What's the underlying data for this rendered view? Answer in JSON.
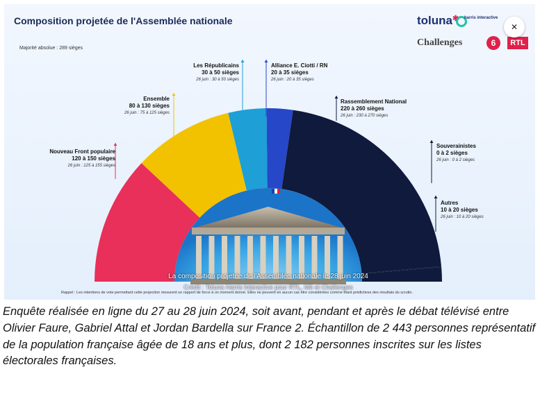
{
  "chart_data": {
    "type": "semicircle",
    "title": "Composition projetée de l'Assemblée nationale",
    "majority_note": "Majorité absolue : 289 sièges",
    "segments": [
      {
        "name": "Nouveau Front populaire",
        "range": "120 à 150 sièges",
        "previous": "26 juin : 125 à 155 sièges",
        "min": 120,
        "max": 150,
        "color": "#e8305a"
      },
      {
        "name": "Ensemble",
        "range": "80 à 130 sièges",
        "previous": "26 juin : 75 à 125 sièges",
        "min": 80,
        "max": 130,
        "color": "#f2c200"
      },
      {
        "name": "Les Républicains",
        "range": "30 à 50 sièges",
        "previous": "26 juin : 30 à 50 sièges",
        "min": 30,
        "max": 50,
        "color": "#1e9fd6"
      },
      {
        "name": "Alliance E. Ciotti / RN",
        "range": "20 à 35 sièges",
        "previous": "26 juin : 20 à 35 sièges",
        "min": 20,
        "max": 35,
        "color": "#2647c8"
      },
      {
        "name": "Rassemblement National",
        "range": "220 à 260 sièges",
        "previous": "26 juin : 230 à 270 sièges",
        "min": 220,
        "max": 260,
        "color": "#0f1a3c"
      },
      {
        "name": "Souverainistes",
        "range": "0 à 2 sièges",
        "previous": "26 juin : 0 à 2 sièges",
        "min": 0,
        "max": 2,
        "color": "#0f1a3c"
      },
      {
        "name": "Autres",
        "range": "10 à 20 sièges",
        "previous": "26 juin : 10 à 20 sièges",
        "min": 10,
        "max": 20,
        "color": "#0f1a3c"
      }
    ]
  },
  "logos": {
    "toluna": "toluna",
    "harris": "harris interactive",
    "challenges": "Challenges",
    "m6": "6",
    "rtl": "RTL"
  },
  "close_label": "✕",
  "image_caption": "La composition projetée de l'Assemblée nationale le 28 juin 2024",
  "image_credit": "Crédit : Toluna Harris Interactive pour RTL, M6 et Challenges",
  "rappel": "Rappel : Les intentions de vote permettant cette projection mesurent un rapport de force à un moment donné. Elles ne peuvent en aucun cas être considérées comme étant prédictives des résultats du scrutin.",
  "article_text": "Enquête réalisée en ligne du 27 au 28 juin 2024, soit avant, pendant et après le débat télévisé entre Olivier Faure, Gabriel Attal et Jordan Bardella sur France 2. Échantillon de 2 443 personnes représentatif de la population française âgée de 18 ans et plus, dont 2 182 personnes inscrites sur les listes électorales françaises."
}
